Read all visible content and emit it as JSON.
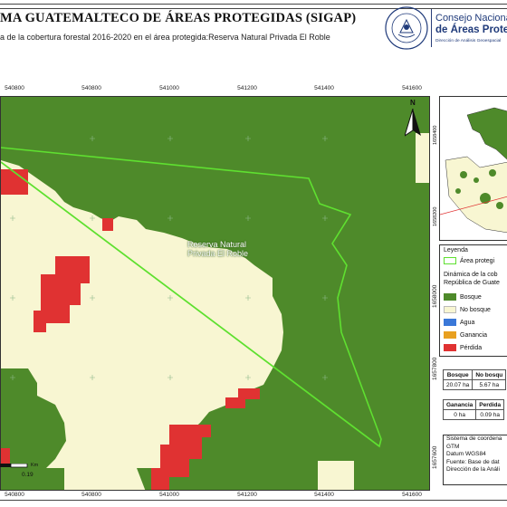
{
  "header": {
    "title": "MA GUATEMALTECO DE ÁREAS PROTEGIDAS  (SIGAP)",
    "subtitle": "a de la cobertura forestal 2016-2020 en el área protegida:Reserva Natural Privada El Roble"
  },
  "logo": {
    "line1": "Consejo Nacional",
    "line2": "de Áreas Protegid",
    "line3": "Dirección de Análisis Geoespacial",
    "seal_name": "seal-icon"
  },
  "map": {
    "x_ticks": [
      "540800",
      "541000",
      "541200",
      "541400",
      "541600"
    ],
    "y_ticks": [
      "1658400",
      "1658200",
      "1658000",
      "1657800",
      "1657600"
    ],
    "area_label_line1": "Reserva Natural",
    "area_label_line2": "Privada El Roble",
    "north_label": "N",
    "scale_unit": "Km",
    "scale_value": "0.19",
    "colors": {
      "bosque": "#4e8a2a",
      "no_bosque": "#f8f6d2",
      "perdida": "#e03232",
      "boundary": "#5fe030",
      "agua": "#3a78d8",
      "ganancia": "#e8a020"
    }
  },
  "inset": {
    "tick1": "1658400",
    "tick2": "1658200"
  },
  "legend": {
    "title": "Leyenda",
    "boundary_label": "Área protegi",
    "subtitle_line1": "Dinámica de la cob",
    "subtitle_line2": "República de Guate",
    "items": [
      {
        "label": "Bosque",
        "color": "#4e8a2a"
      },
      {
        "label": "No bosque",
        "color": "#f8f6d2"
      },
      {
        "label": "Agua",
        "color": "#3a78d8"
      },
      {
        "label": "Ganancia",
        "color": "#e8a020"
      },
      {
        "label": "Pérdida",
        "color": "#e03232"
      }
    ]
  },
  "stats": {
    "table1": {
      "h1": "Bosque",
      "h2": "No bosqu",
      "v1": "20.07 ha",
      "v2": "5.67 ha"
    },
    "table2": {
      "h1": "Ganancia",
      "h2": "Perdida",
      "v1": "0 ha",
      "v2": "0.09 ha"
    }
  },
  "system": {
    "lines": [
      "Sistema de coordena",
      "GTM",
      "Datum WGS84",
      "Fuente: Base de dat",
      "Dirección de la Análi"
    ]
  }
}
